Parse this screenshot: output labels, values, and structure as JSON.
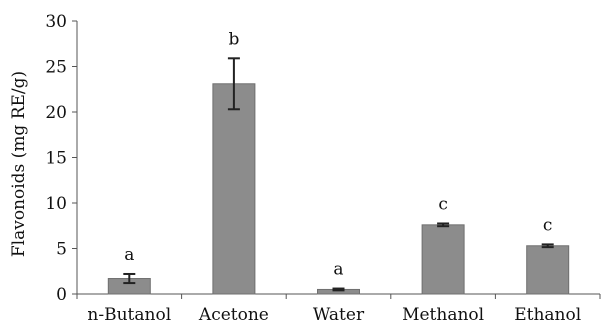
{
  "chart_data": {
    "type": "bar",
    "title": "",
    "xlabel": "",
    "ylabel": "Flavonoids (mg RE/g)",
    "ylim": [
      0,
      30
    ],
    "yticks": [
      0,
      5,
      10,
      15,
      20,
      25,
      30
    ],
    "grid": false,
    "categories": [
      "n-Butanol",
      "Acetone",
      "Water",
      "Methanol",
      "Ethanol"
    ],
    "values": [
      1.7,
      23.1,
      0.5,
      7.6,
      5.3
    ],
    "errors": [
      0.5,
      2.8,
      0.1,
      0.15,
      0.15
    ],
    "significance_labels": [
      "a",
      "b",
      "a",
      "c",
      "c"
    ],
    "colors": {
      "bar": "#8c8c8c",
      "bar_edge": "#6f6f6f",
      "error_bar": "#222222",
      "axis": "#555555"
    }
  }
}
